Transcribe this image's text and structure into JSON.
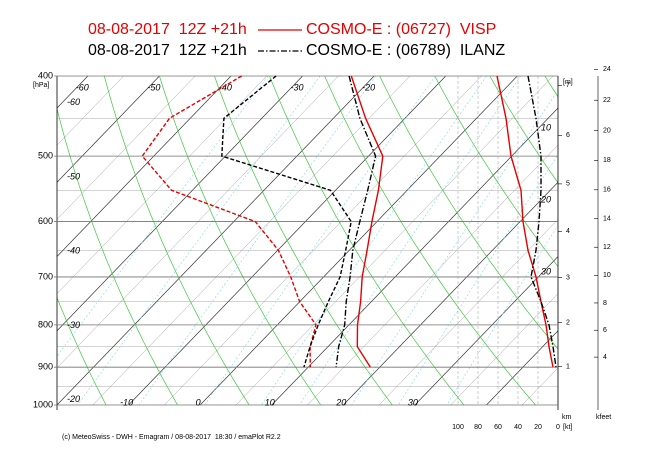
{
  "chart_data": {
    "type": "emagram",
    "footer": "(c) MeteoSwiss - DWH - Emagram / 08-08-2017  18:30 / emaPlot R2.2",
    "y_unit": "[hPa]",
    "height_unit": "[m]",
    "km_label": "km",
    "kfeet_label": "kfeet",
    "wind_unit": "[kt]",
    "log_scale": true,
    "grid": true,
    "ylim": [
      400,
      1000
    ],
    "yticks": [
      400,
      500,
      600,
      700,
      800,
      900,
      1000
    ],
    "xlim": [
      -20,
      50
    ],
    "temperature_labels_top": [
      -60,
      -50,
      -40,
      -30,
      -20
    ],
    "temperature_labels_left": [
      -60,
      -50,
      -40,
      -30,
      -20
    ],
    "temperature_labels_bottom": [
      -10,
      0,
      10,
      20,
      30
    ],
    "right_labels": [
      10,
      20,
      30
    ],
    "km_ticks": [
      1,
      2,
      3,
      4,
      5,
      6,
      7
    ],
    "kfeet_ticks": [
      4,
      6,
      8,
      10,
      12,
      14,
      16,
      18,
      20,
      22,
      24
    ],
    "wind_xlim": [
      100,
      0
    ],
    "wind_ticks": [
      100,
      80,
      60,
      40,
      20,
      0
    ],
    "pressure": [
      400,
      450,
      500,
      550,
      600,
      650,
      700,
      750,
      800,
      850,
      900
    ],
    "series": [
      {
        "run": "08-08-2017  12Z +21h",
        "name": "COSMO-E : (06727)  VISP",
        "color": "#e60000",
        "line_style": "solid",
        "temperature": [
          -23.2,
          -15.5,
          -8,
          -4,
          -0.7,
          2.5,
          5.4,
          8.5,
          11.2,
          14.1,
          18.7
        ],
        "dewpoint": [
          -38.5,
          -42.9,
          -41.6,
          -32.9,
          -17,
          -9.9,
          -4.6,
          0,
          5.4,
          7.5,
          10.3
        ],
        "wind_speed": [
          61,
          52,
          47,
          37,
          35,
          30,
          22,
          17,
          12,
          9,
          5
        ]
      },
      {
        "run": "08-08-2017  12Z +21h",
        "name": "COSMO-E : (06789)  ILANZ",
        "color": "#000000",
        "line_style": "dashdot",
        "temperature": [
          -23.5,
          -16.3,
          -9,
          -5.5,
          -2.4,
          0.5,
          3.7,
          6.5,
          9.4,
          11.5,
          13.9
        ],
        "dewpoint": [
          -33.7,
          -35.3,
          -30.5,
          -10.7,
          -3.6,
          -0.5,
          2.3,
          4,
          5.7,
          7.5,
          9.4
        ],
        "wind_speed": [
          30,
          22,
          17,
          17,
          19,
          22,
          27,
          17,
          9,
          5,
          2
        ]
      }
    ]
  }
}
